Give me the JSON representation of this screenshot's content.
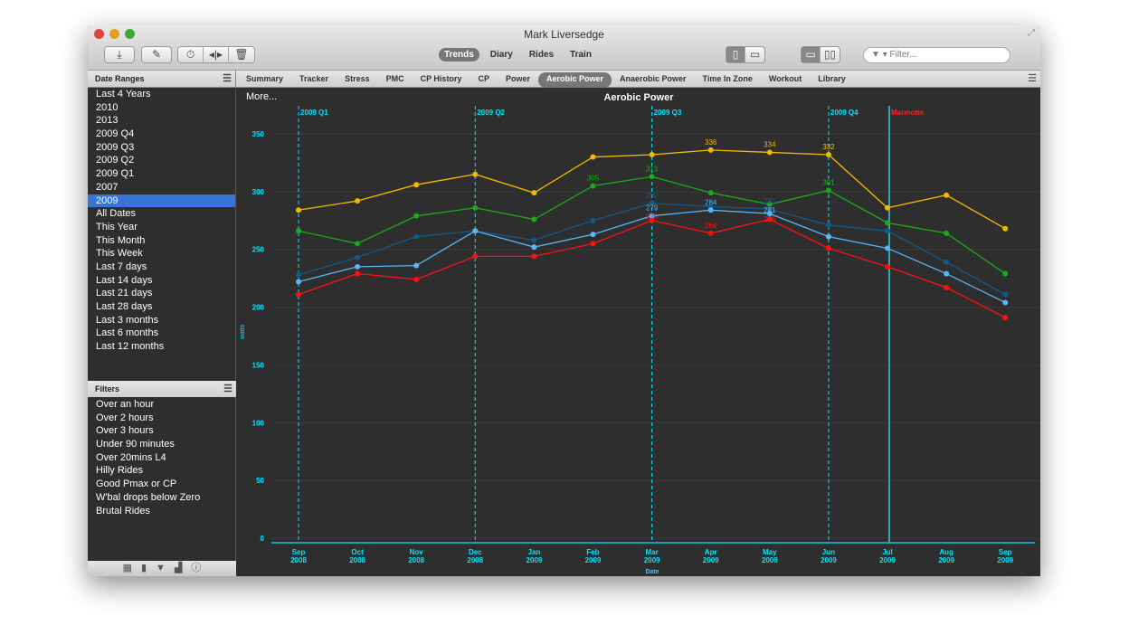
{
  "window": {
    "title": "Mark Liversedge"
  },
  "toolbar": {
    "icons": [
      "download-icon",
      "edit-icon",
      "stopwatch-icon",
      "split-icon",
      "trash-icon"
    ],
    "nav": [
      "Trends",
      "Diary",
      "Rides",
      "Train"
    ],
    "active_nav": "Trends",
    "filter_placeholder": "▾ Filter...",
    "filter_icon": "▼"
  },
  "date_ranges": {
    "title": "Date Ranges",
    "items": [
      "Last 4 Years",
      "2010",
      "2013",
      "2009 Q4",
      "2009 Q3",
      "2009 Q2",
      "2009 Q1",
      "2007",
      "2009",
      "All Dates",
      "This Year",
      "This Month",
      "This Week",
      "Last 7 days",
      "Last 14 days",
      "Last 21 days",
      "Last 28 days",
      "Last 3 months",
      "Last 6 months",
      "Last 12 months"
    ],
    "selected": "2009"
  },
  "filters": {
    "title": "Filters",
    "items": [
      "Over an hour",
      "Over 2 hours",
      "Over 3 hours",
      "Under 90 minutes",
      "Over 20mins L4",
      "Hilly Rides",
      "Good Pmax or CP",
      "W'bal drops below Zero",
      "Brutal Rides"
    ]
  },
  "tabs": [
    "Summary",
    "Tracker",
    "Stress",
    "PMC",
    "CP History",
    "CP",
    "Power",
    "Aerobic Power",
    "Anaerobic Power",
    "Time In Zone",
    "Workout",
    "Library"
  ],
  "active_tab": "Aerobic Power",
  "more_label": "More...",
  "chart_data": {
    "type": "line",
    "title": "Aerobic Power",
    "xlabel": "Date",
    "ylabel": "watts",
    "ylim": [
      0,
      350
    ],
    "yticks": [
      0,
      50,
      100,
      150,
      200,
      250,
      300,
      350
    ],
    "grid": true,
    "categories": [
      [
        "Sep",
        "2008"
      ],
      [
        "Oct",
        "2008"
      ],
      [
        "Nov",
        "2008"
      ],
      [
        "Dec",
        "2008"
      ],
      [
        "Jan",
        "2009"
      ],
      [
        "Feb",
        "2009"
      ],
      [
        "Mar",
        "2009"
      ],
      [
        "Apr",
        "2009"
      ],
      [
        "May",
        "2009"
      ],
      [
        "Jun",
        "2009"
      ],
      [
        "Jul",
        "2009"
      ],
      [
        "Aug",
        "2009"
      ],
      [
        "Sep",
        "2009"
      ]
    ],
    "series": [
      {
        "color": "#f5b800",
        "values": [
          284,
          292,
          306,
          315,
          299,
          330,
          332,
          336,
          334,
          332,
          286,
          297,
          268
        ],
        "labels": {
          "7": "336",
          "8": "334",
          "9": "332"
        }
      },
      {
        "color": "#1aaa1a",
        "values": [
          266,
          255,
          279,
          286,
          276,
          305,
          313,
          299,
          289,
          301,
          273,
          264,
          229
        ],
        "labels": {
          "5": "305",
          "6": "313",
          "9": "301"
        }
      },
      {
        "color": "#0f5a88",
        "values": [
          228,
          243,
          261,
          266,
          258,
          275,
          290,
          287,
          285,
          271,
          266,
          239,
          211
        ],
        "labels": {
          "6": "290",
          "8": "285"
        }
      },
      {
        "color": "#5ab4f5",
        "values": [
          222,
          235,
          236,
          266,
          252,
          263,
          279,
          284,
          281,
          261,
          251,
          229,
          204
        ],
        "labels": {
          "6": "279",
          "7": "284",
          "8": "281"
        }
      },
      {
        "color": "#ff1010",
        "values": [
          211,
          229,
          224,
          244,
          244,
          255,
          275,
          264,
          276,
          251,
          235,
          217,
          191
        ],
        "labels": {
          "6": "275",
          "7": "264",
          "8": "276"
        }
      }
    ],
    "markers": [
      {
        "label": "2009 Q1",
        "at": 0,
        "style": "dashed",
        "color": "#00e5ff"
      },
      {
        "label": "2009 Q2",
        "at": 3,
        "style": "dashed",
        "color": "#00e5ff"
      },
      {
        "label": "2009 Q3",
        "at": 6,
        "style": "dashed",
        "color": "#00e5ff"
      },
      {
        "label": "2009 Q4",
        "at": 9,
        "style": "dashed",
        "color": "#00e5ff"
      },
      {
        "label": "Marmotte",
        "at": 10,
        "style": "solid",
        "color": "#ff2020"
      }
    ]
  },
  "sidebar_bottom_icons": [
    "calendar-icon",
    "bookmark-icon",
    "filter-icon",
    "chart-icon",
    "info-icon"
  ]
}
